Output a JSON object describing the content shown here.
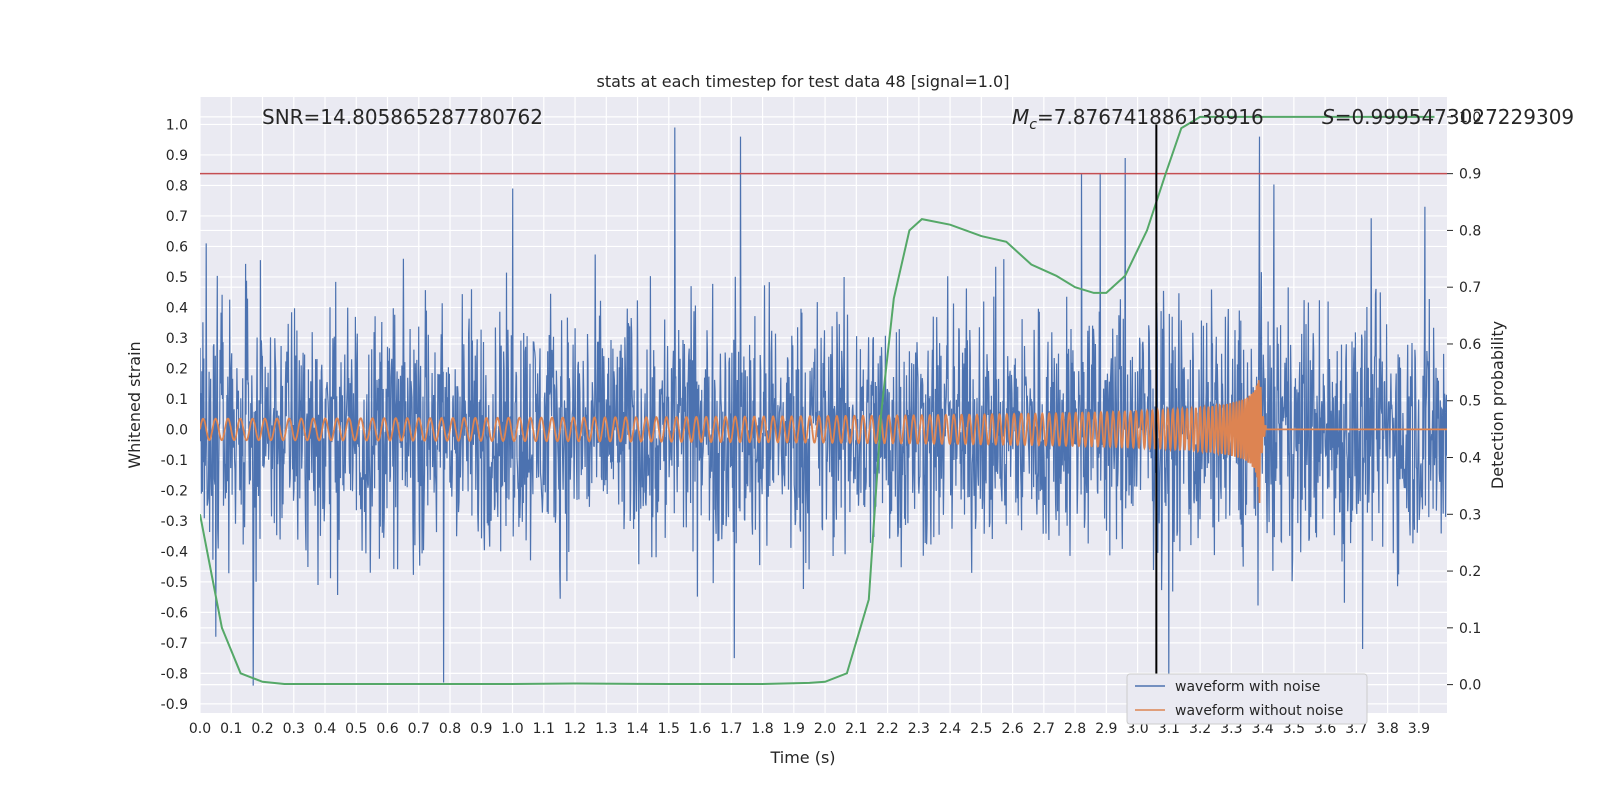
{
  "chart_data": {
    "type": "line",
    "title": "stats at each timestep for test data 48 [signal=1.0]",
    "xlabel": "Time (s)",
    "ylabel": "Whitened strain",
    "y2label": "Detection probability",
    "xlim": [
      0.0,
      3.99
    ],
    "ylim": [
      -0.93,
      1.09
    ],
    "y2lim": [
      -0.05,
      1.035
    ],
    "x_ticks": [
      "0.0",
      "0.1",
      "0.2",
      "0.3",
      "0.4",
      "0.5",
      "0.6",
      "0.7",
      "0.8",
      "0.9",
      "1.0",
      "1.1",
      "1.2",
      "1.3",
      "1.4",
      "1.5",
      "1.6",
      "1.7",
      "1.8",
      "1.9",
      "2.0",
      "2.1",
      "2.2",
      "2.3",
      "2.4",
      "2.5",
      "2.6",
      "2.7",
      "2.8",
      "2.9",
      "3.0",
      "3.1",
      "3.2",
      "3.3",
      "3.4",
      "3.5",
      "3.6",
      "3.7",
      "3.8",
      "3.9"
    ],
    "y_ticks": [
      "1.0",
      "0.9",
      "0.8",
      "0.7",
      "0.6",
      "0.5",
      "0.4",
      "0.3",
      "0.2",
      "0.1",
      "0.0",
      "-0.1",
      "-0.2",
      "-0.3",
      "-0.4",
      "-0.5",
      "-0.6",
      "-0.7",
      "-0.8",
      "-0.9"
    ],
    "y2_ticks": [
      "1.0",
      "0.9",
      "0.8",
      "0.7",
      "0.6",
      "0.5",
      "0.4",
      "0.3",
      "0.2",
      "0.1",
      "0.0"
    ],
    "annotations": {
      "snr": "SNR=14.805865287780762",
      "mc_symbol": "M",
      "mc_sub": "c",
      "mc_value": "=7.876741886138916",
      "s_symbol": "S",
      "s_value": "=0.9995473027229309"
    },
    "threshold": {
      "y2": 0.9,
      "color": "#c44e52"
    },
    "marker_line": {
      "x": 3.06,
      "color": "#000000"
    },
    "series": [
      {
        "name": "waveform with noise",
        "color": "#4c72b0",
        "noise_envelope": 0.45,
        "spikes": [
          [
            0.02,
            0.61
          ],
          [
            0.05,
            -0.68
          ],
          [
            0.17,
            -0.84
          ],
          [
            0.78,
            -0.83
          ],
          [
            1.0,
            0.79
          ],
          [
            1.52,
            0.99
          ],
          [
            1.73,
            0.96
          ],
          [
            1.71,
            -0.75
          ],
          [
            2.82,
            0.84
          ],
          [
            2.88,
            0.84
          ],
          [
            2.96,
            0.89
          ],
          [
            3.39,
            0.96
          ],
          [
            3.92,
            0.73
          ],
          [
            3.72,
            -0.72
          ],
          [
            3.08,
            0.33
          ],
          [
            3.1,
            -0.86
          ]
        ]
      },
      {
        "name": "waveform without noise",
        "color": "#dd8452",
        "chirp_end": 3.39,
        "peak": 0.5,
        "trough": -0.45
      },
      {
        "name": "Detection probability",
        "color": "#55a868",
        "x": [
          0.0,
          0.07,
          0.13,
          0.2,
          0.27,
          0.5,
          1.0,
          1.2,
          1.5,
          1.8,
          1.95,
          2.0,
          2.07,
          2.14,
          2.18,
          2.22,
          2.27,
          2.31,
          2.4,
          2.5,
          2.58,
          2.66,
          2.74,
          2.8,
          2.86,
          2.9,
          2.96,
          3.03,
          3.09,
          3.14,
          3.2,
          3.3,
          3.5,
          3.7,
          3.95
        ],
        "y": [
          0.3,
          0.1,
          0.02,
          0.005,
          0.001,
          0.001,
          0.001,
          0.002,
          0.001,
          0.001,
          0.003,
          0.005,
          0.02,
          0.15,
          0.48,
          0.68,
          0.8,
          0.82,
          0.81,
          0.79,
          0.78,
          0.74,
          0.72,
          0.7,
          0.69,
          0.69,
          0.72,
          0.8,
          0.9,
          0.98,
          1.0,
          1.0,
          1.0,
          1.0,
          1.0
        ]
      }
    ],
    "legend": {
      "placement": "lower-right",
      "items": [
        "waveform with noise",
        "waveform without noise"
      ]
    },
    "grid": true
  }
}
